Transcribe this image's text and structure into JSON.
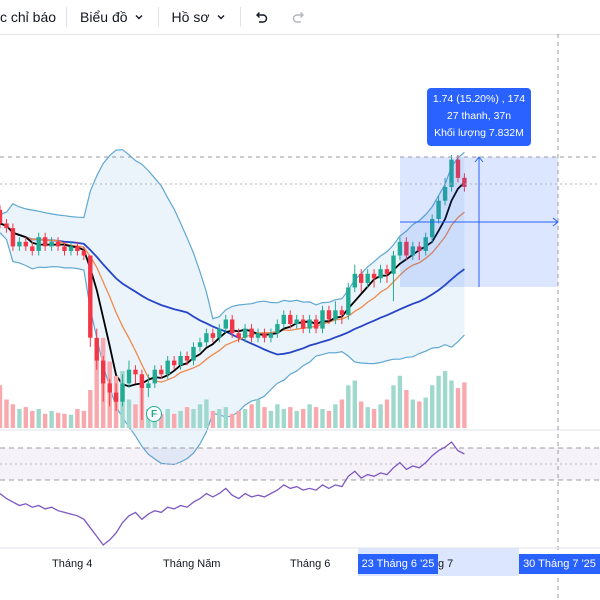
{
  "toolbar": {
    "indicators_label": "c chỉ báo",
    "chart_label": "Biểu đồ",
    "profile_label": "Hồ sơ"
  },
  "tooltip": {
    "line1": "1.74 (15.20%) , 174",
    "line2": "27 thanh, 37n",
    "line3": "Khối lượng 7.832M"
  },
  "xaxis": {
    "labels": [
      "Tháng 4",
      "Tháng Năm",
      "Tháng 6",
      "g 7"
    ],
    "range_start_badge": "23 Tháng 6 '25",
    "range_end_badge": "30 Tháng 7 '25"
  },
  "event_marker": "F",
  "colors": {
    "up": "#22ab94",
    "down": "#f23645",
    "accent": "#2962ff",
    "bollinger": "#5fa8d3",
    "ma_fast": "#000000",
    "ma_mid": "#f08a4b",
    "ma_slow": "#2745c8",
    "rsi": "#7e57c2"
  },
  "chart_data": {
    "type": "candlestick",
    "candles": [
      [
        0.88,
        0.85,
        0.89,
        0.84
      ],
      [
        0.85,
        0.84,
        0.86,
        0.83
      ],
      [
        0.84,
        0.8,
        0.85,
        0.79
      ],
      [
        0.8,
        0.81,
        0.82,
        0.79
      ],
      [
        0.81,
        0.8,
        0.82,
        0.79
      ],
      [
        0.8,
        0.79,
        0.81,
        0.78
      ],
      [
        0.79,
        0.82,
        0.83,
        0.78
      ],
      [
        0.82,
        0.8,
        0.83,
        0.79
      ],
      [
        0.8,
        0.81,
        0.82,
        0.79
      ],
      [
        0.81,
        0.8,
        0.82,
        0.79
      ],
      [
        0.8,
        0.79,
        0.81,
        0.78
      ],
      [
        0.79,
        0.8,
        0.81,
        0.78
      ],
      [
        0.8,
        0.79,
        0.81,
        0.78
      ],
      [
        0.79,
        0.78,
        0.8,
        0.77
      ],
      [
        0.78,
        0.6,
        0.78,
        0.58
      ],
      [
        0.6,
        0.55,
        0.62,
        0.53
      ],
      [
        0.55,
        0.5,
        0.56,
        0.46
      ],
      [
        0.5,
        0.48,
        0.51,
        0.45
      ],
      [
        0.48,
        0.46,
        0.5,
        0.44
      ],
      [
        0.46,
        0.5,
        0.52,
        0.45
      ],
      [
        0.5,
        0.53,
        0.55,
        0.49
      ],
      [
        0.53,
        0.52,
        0.54,
        0.5
      ],
      [
        0.52,
        0.49,
        0.53,
        0.42
      ],
      [
        0.49,
        0.5,
        0.52,
        0.47
      ],
      [
        0.5,
        0.53,
        0.54,
        0.49
      ],
      [
        0.53,
        0.52,
        0.54,
        0.51
      ],
      [
        0.52,
        0.55,
        0.56,
        0.51
      ],
      [
        0.55,
        0.54,
        0.56,
        0.53
      ],
      [
        0.54,
        0.56,
        0.57,
        0.53
      ],
      [
        0.56,
        0.55,
        0.57,
        0.54
      ],
      [
        0.55,
        0.58,
        0.59,
        0.54
      ],
      [
        0.58,
        0.59,
        0.6,
        0.57
      ],
      [
        0.59,
        0.61,
        0.62,
        0.58
      ],
      [
        0.61,
        0.6,
        0.62,
        0.59
      ],
      [
        0.6,
        0.62,
        0.63,
        0.59
      ],
      [
        0.62,
        0.64,
        0.65,
        0.61
      ],
      [
        0.64,
        0.61,
        0.65,
        0.6
      ],
      [
        0.61,
        0.6,
        0.62,
        0.59
      ],
      [
        0.6,
        0.62,
        0.63,
        0.59
      ],
      [
        0.62,
        0.6,
        0.63,
        0.59
      ],
      [
        0.6,
        0.61,
        0.62,
        0.59
      ],
      [
        0.61,
        0.6,
        0.62,
        0.59
      ],
      [
        0.6,
        0.61,
        0.62,
        0.59
      ],
      [
        0.61,
        0.63,
        0.64,
        0.6
      ],
      [
        0.63,
        0.65,
        0.66,
        0.62
      ],
      [
        0.65,
        0.63,
        0.66,
        0.62
      ],
      [
        0.63,
        0.64,
        0.65,
        0.62
      ],
      [
        0.64,
        0.62,
        0.65,
        0.61
      ],
      [
        0.62,
        0.64,
        0.65,
        0.61
      ],
      [
        0.64,
        0.62,
        0.65,
        0.61
      ],
      [
        0.62,
        0.66,
        0.67,
        0.61
      ],
      [
        0.66,
        0.64,
        0.67,
        0.63
      ],
      [
        0.64,
        0.66,
        0.68,
        0.63
      ],
      [
        0.66,
        0.65,
        0.67,
        0.63
      ],
      [
        0.65,
        0.71,
        0.72,
        0.64
      ],
      [
        0.71,
        0.74,
        0.76,
        0.7
      ],
      [
        0.74,
        0.72,
        0.75,
        0.7
      ],
      [
        0.72,
        0.74,
        0.75,
        0.71
      ],
      [
        0.74,
        0.73,
        0.75,
        0.71
      ],
      [
        0.73,
        0.75,
        0.76,
        0.72
      ],
      [
        0.75,
        0.74,
        0.76,
        0.72
      ],
      [
        0.74,
        0.78,
        0.79,
        0.68
      ],
      [
        0.78,
        0.81,
        0.82,
        0.77
      ],
      [
        0.81,
        0.78,
        0.82,
        0.77
      ],
      [
        0.78,
        0.8,
        0.81,
        0.77
      ],
      [
        0.8,
        0.79,
        0.81,
        0.77
      ],
      [
        0.79,
        0.82,
        0.83,
        0.78
      ],
      [
        0.82,
        0.86,
        0.87,
        0.81
      ],
      [
        0.86,
        0.9,
        0.91,
        0.85
      ],
      [
        0.9,
        0.93,
        0.95,
        0.89
      ],
      [
        0.93,
        0.99,
        1.0,
        0.92
      ],
      [
        0.99,
        0.95,
        1.0,
        0.94
      ],
      [
        0.95,
        0.93,
        0.96,
        0.92
      ]
    ],
    "volume": [
      45,
      30,
      25,
      20,
      22,
      18,
      20,
      15,
      18,
      16,
      15,
      14,
      20,
      18,
      40,
      90,
      95,
      70,
      55,
      60,
      30,
      25,
      55,
      20,
      18,
      15,
      20,
      15,
      18,
      22,
      20,
      25,
      30,
      18,
      20,
      22,
      15,
      18,
      20,
      25,
      30,
      22,
      18,
      25,
      20,
      22,
      18,
      20,
      25,
      22,
      20,
      18,
      25,
      30,
      45,
      50,
      28,
      22,
      20,
      25,
      30,
      45,
      55,
      40,
      30,
      28,
      32,
      45,
      55,
      60,
      50,
      42,
      48
    ],
    "rsi": [
      45,
      42,
      40,
      38,
      39,
      37,
      38,
      36,
      37,
      35,
      34,
      33,
      32,
      30,
      25,
      20,
      15,
      18,
      22,
      28,
      32,
      34,
      30,
      33,
      35,
      34,
      37,
      36,
      38,
      37,
      40,
      42,
      45,
      43,
      45,
      48,
      44,
      42,
      45,
      43,
      44,
      43,
      45,
      47,
      50,
      48,
      49,
      47,
      48,
      47,
      50,
      48,
      50,
      49,
      55,
      58,
      54,
      56,
      55,
      57,
      56,
      60,
      63,
      59,
      61,
      60,
      63,
      67,
      70,
      72,
      75,
      70,
      68
    ]
  }
}
